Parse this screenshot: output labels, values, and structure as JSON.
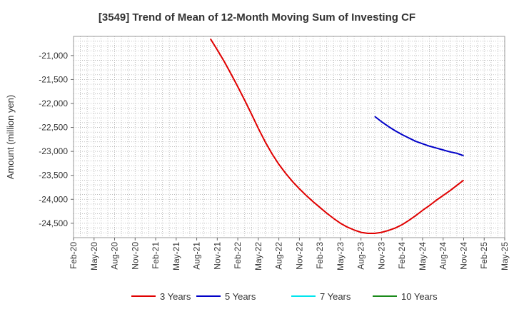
{
  "chart_data": {
    "type": "line",
    "title": "[3549]  Trend of Mean of 12-Month Moving Sum of Investing CF",
    "xlabel": "",
    "ylabel": "Amount (million yen)",
    "ylim": [
      -24800,
      -20600
    ],
    "grid": true,
    "legend_position": "bottom",
    "x_ticks": [
      "Feb-20",
      "May-20",
      "Aug-20",
      "Nov-20",
      "Feb-21",
      "May-21",
      "Aug-21",
      "Nov-21",
      "Feb-22",
      "May-22",
      "Aug-22",
      "Nov-22",
      "Feb-23",
      "May-23",
      "Aug-23",
      "Nov-23",
      "Feb-24",
      "May-24",
      "Aug-24",
      "Nov-24",
      "Feb-25",
      "May-25"
    ],
    "y_ticks": [
      -21000,
      -21500,
      -22000,
      -22500,
      -23000,
      -23500,
      -24000,
      -24500
    ],
    "y_tick_labels": [
      "-21,000",
      "-21,500",
      "-22,000",
      "-22,500",
      "-23,000",
      "-23,500",
      "-24,000",
      "-24,500"
    ],
    "series": [
      {
        "name": "3 Years",
        "color": "#e00000",
        "x": [
          "Oct-21",
          "Nov-21",
          "Dec-21",
          "Jan-22",
          "Feb-22",
          "Mar-22",
          "Apr-22",
          "May-22",
          "Jun-22",
          "Jul-22",
          "Aug-22",
          "Sep-22",
          "Oct-22",
          "Nov-22",
          "Dec-22",
          "Jan-23",
          "Feb-23",
          "Mar-23",
          "Apr-23",
          "May-23",
          "Jun-23",
          "Jul-23",
          "Aug-23",
          "Sep-23",
          "Oct-23",
          "Nov-23",
          "Dec-23",
          "Jan-24",
          "Feb-24",
          "Mar-24",
          "Apr-24",
          "May-24",
          "Jun-24",
          "Jul-24",
          "Aug-24",
          "Sep-24",
          "Oct-24",
          "Nov-24"
        ],
        "values": [
          -20650,
          -20880,
          -21120,
          -21380,
          -21650,
          -21930,
          -22220,
          -22520,
          -22800,
          -23050,
          -23270,
          -23460,
          -23630,
          -23780,
          -23920,
          -24050,
          -24170,
          -24290,
          -24400,
          -24500,
          -24580,
          -24640,
          -24690,
          -24710,
          -24710,
          -24690,
          -24650,
          -24600,
          -24530,
          -24440,
          -24340,
          -24230,
          -24130,
          -24020,
          -23920,
          -23820,
          -23710,
          -23600
        ]
      },
      {
        "name": "5 Years",
        "color": "#0000c8",
        "x": [
          "Oct-23",
          "Nov-23",
          "Dec-23",
          "Jan-24",
          "Feb-24",
          "Mar-24",
          "Apr-24",
          "May-24",
          "Jun-24",
          "Jul-24",
          "Aug-24",
          "Sep-24",
          "Oct-24",
          "Nov-24"
        ],
        "values": [
          -22270,
          -22380,
          -22480,
          -22570,
          -22650,
          -22720,
          -22790,
          -22840,
          -22890,
          -22930,
          -22970,
          -23010,
          -23040,
          -23090
        ]
      },
      {
        "name": "7 Years",
        "color": "#00e5ee",
        "x": [],
        "values": []
      },
      {
        "name": "10 Years",
        "color": "#1a8a1a",
        "x": [],
        "values": []
      }
    ]
  }
}
